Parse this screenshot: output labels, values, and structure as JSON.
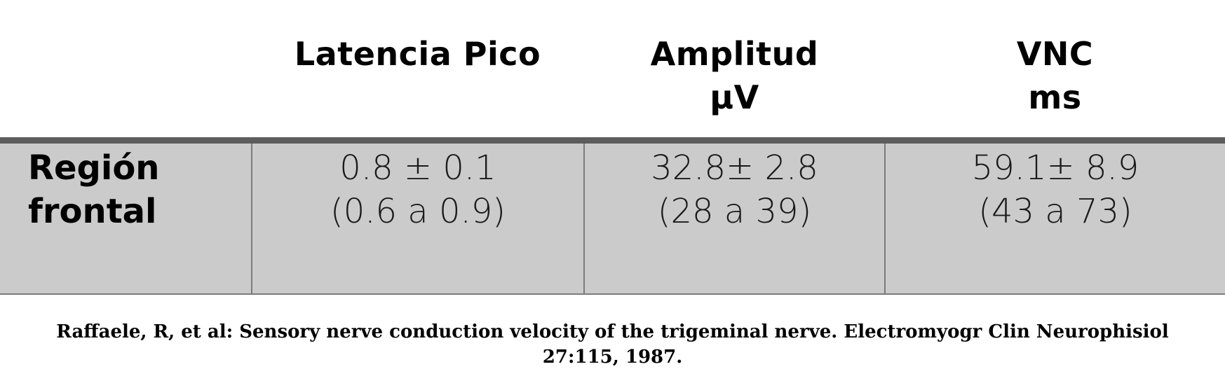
{
  "table": {
    "headers": [
      {
        "line1": "Latencia Pico",
        "line2": ""
      },
      {
        "line1": "Amplitud",
        "line2": "µV"
      },
      {
        "line1": "VNC",
        "line2": "ms"
      }
    ],
    "rows": [
      {
        "label_line1": "Región",
        "label_line2": "frontal",
        "cells": [
          {
            "main": "0.8 ± 0.1",
            "range": "(0.6 a 0.9)"
          },
          {
            "main": "32.8± 2.8",
            "range": "(28 a 39)"
          },
          {
            "main": "59.1± 8.9",
            "range": "(43 a 73)"
          }
        ]
      }
    ]
  },
  "citation": "Raffaele, R, et al: Sensory nerve conduction velocity of the trigeminal nerve. Electromyogr Clin Neurophisiol 27:115, 1987.",
  "colors": {
    "row_background": "#cbcbcb",
    "header_rule": "#5d5d5d",
    "cell_border": "#7b7b7b"
  }
}
